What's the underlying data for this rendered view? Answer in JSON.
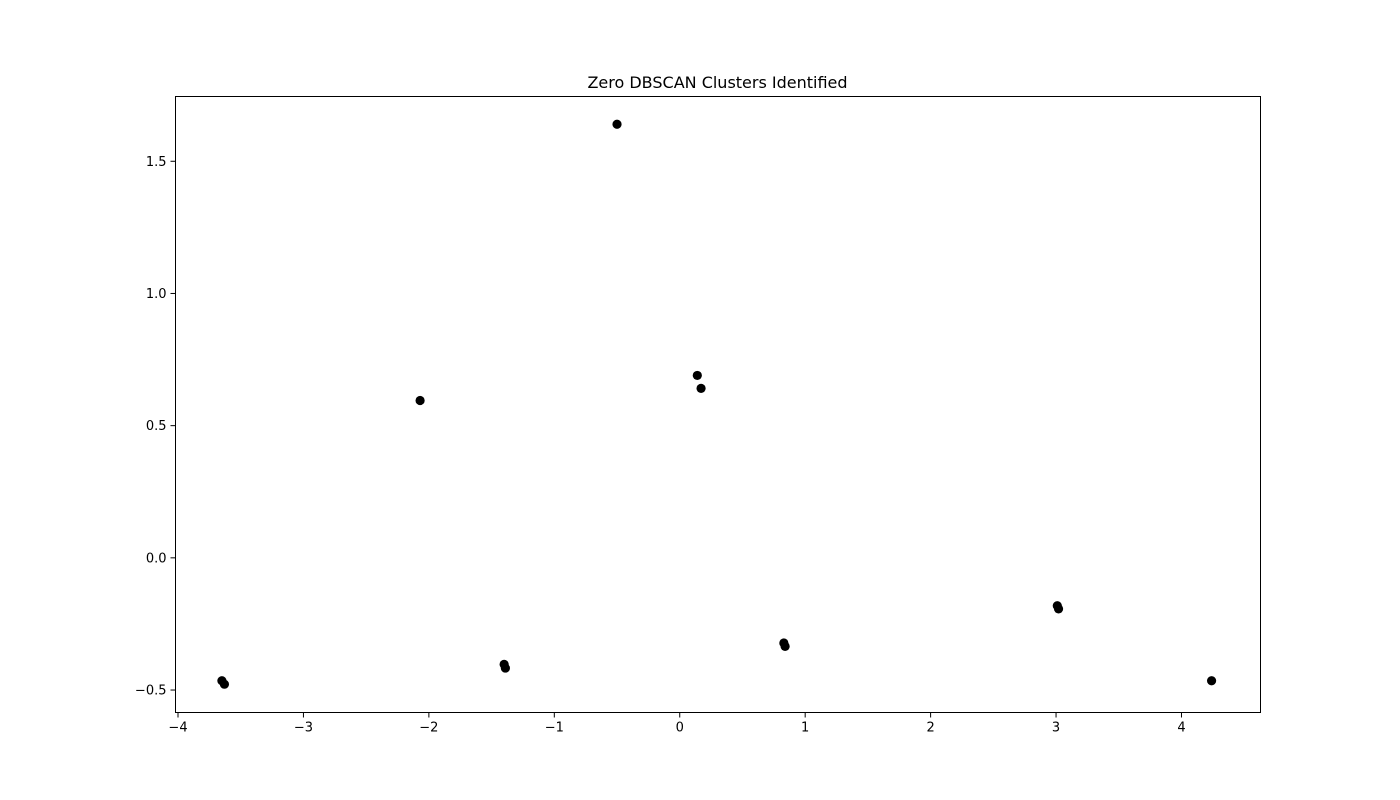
{
  "chart_data": {
    "type": "scatter",
    "title": "Zero DBSCAN Clusters Identified",
    "xlabel": "",
    "ylabel": "",
    "xlim": [
      -4.02,
      4.63
    ],
    "ylim": [
      -0.585,
      1.745
    ],
    "x_ticks": [
      -4,
      -3,
      -2,
      -1,
      0,
      1,
      2,
      3,
      4
    ],
    "x_tick_labels": [
      "−4",
      "−3",
      "−2",
      "−1",
      "0",
      "1",
      "2",
      "3",
      "4"
    ],
    "y_ticks": [
      -0.5,
      0.0,
      0.5,
      1.0,
      1.5
    ],
    "y_tick_labels": [
      "−0.5",
      "0.0",
      "0.5",
      "1.0",
      "1.5"
    ],
    "grid": false,
    "point_color": "#000000",
    "points": [
      {
        "x": -3.65,
        "y": -0.465
      },
      {
        "x": -3.63,
        "y": -0.478
      },
      {
        "x": -2.07,
        "y": 0.595
      },
      {
        "x": -1.4,
        "y": -0.403
      },
      {
        "x": -1.39,
        "y": -0.417
      },
      {
        "x": -0.5,
        "y": 1.64
      },
      {
        "x": 0.14,
        "y": 0.69
      },
      {
        "x": 0.17,
        "y": 0.641
      },
      {
        "x": 0.83,
        "y": -0.322
      },
      {
        "x": 0.84,
        "y": -0.335
      },
      {
        "x": 3.01,
        "y": -0.181
      },
      {
        "x": 3.02,
        "y": -0.193
      },
      {
        "x": 4.24,
        "y": -0.465
      }
    ]
  }
}
